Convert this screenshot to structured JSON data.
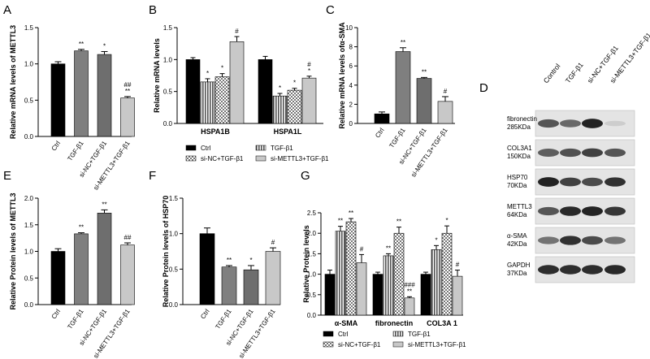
{
  "panels": {
    "A": {
      "letter": "A"
    },
    "B": {
      "letter": "B"
    },
    "C": {
      "letter": "C"
    },
    "D": {
      "letter": "D"
    },
    "E": {
      "letter": "E"
    },
    "F": {
      "letter": "F"
    },
    "G": {
      "letter": "G"
    }
  },
  "colors": {
    "black": "#000000",
    "medium_gray": "#7f7f7f",
    "dark_gray": "#6e6e6e",
    "light_gray": "#c8c8c8",
    "error_bar": "#000000"
  },
  "chart_data": [
    {
      "id": "A",
      "type": "bar",
      "ylabel": "Relative mRNA levels of METTL3",
      "categories": [
        "Ctrl",
        "TGF-β1",
        "si-NC+TGF-β1",
        "si-METTL3+TGF-β1"
      ],
      "values": [
        1.0,
        1.18,
        1.13,
        0.53
      ],
      "errors": [
        0.03,
        0.02,
        0.04,
        0.02
      ],
      "fills": [
        "black",
        "medium_gray",
        "dark_gray",
        "light_gray"
      ],
      "annotations": [
        "",
        "**",
        "*",
        "##\n**"
      ],
      "yticks": [
        "0.0",
        "0.5",
        "1.0",
        "1.5"
      ],
      "ylim": [
        0,
        1.5
      ]
    },
    {
      "id": "B",
      "type": "bar",
      "ylabel": "Relative mRNA levels",
      "groups": [
        "HSPA1B",
        "HSPA1L"
      ],
      "series": [
        {
          "name": "Ctrl",
          "pattern": "solid-black",
          "values": [
            1.0,
            1.0
          ],
          "errors": [
            0.03,
            0.05
          ],
          "annotations": [
            "",
            ""
          ]
        },
        {
          "name": "TGF-β1",
          "pattern": "vstripe",
          "values": [
            0.65,
            0.43
          ],
          "errors": [
            0.05,
            0.04
          ],
          "annotations": [
            "*",
            "*"
          ]
        },
        {
          "name": "si-NC+TGF-β1",
          "pattern": "check",
          "values": [
            0.73,
            0.52
          ],
          "errors": [
            0.05,
            0.03
          ],
          "annotations": [
            "*",
            "*"
          ]
        },
        {
          "name": "si-METTL3+TGF-β1",
          "pattern": "solid-light",
          "values": [
            1.28,
            0.71
          ],
          "errors": [
            0.08,
            0.03
          ],
          "annotations": [
            "#",
            "#\n*"
          ]
        }
      ],
      "yticks": [
        "0.0",
        "0.5",
        "1.0",
        "1.5"
      ],
      "ylim": [
        0,
        1.5
      ],
      "legend": [
        "Ctrl",
        "TGF-β1",
        "si-NC+TGF-β1",
        "si-METTL3+TGF-β1"
      ]
    },
    {
      "id": "C",
      "type": "bar",
      "ylabel": "Relative mRNA levels ofα-SMA",
      "categories": [
        "Ctrl",
        "TGF-β1",
        "si-NC+TGF-β1",
        "si-METTL3+TGF-β1"
      ],
      "values": [
        1.0,
        7.5,
        4.7,
        2.3
      ],
      "errors": [
        0.2,
        0.4,
        0.1,
        0.5
      ],
      "fills": [
        "black",
        "medium_gray",
        "dark_gray",
        "light_gray"
      ],
      "annotations": [
        "",
        "**",
        "**",
        "#"
      ],
      "yticks": [
        "0",
        "2",
        "4",
        "6",
        "8",
        "10"
      ],
      "ylim": [
        0,
        10
      ]
    },
    {
      "id": "E",
      "type": "bar",
      "ylabel": "Relative Protein levels of METTL3",
      "categories": [
        "Ctrl",
        "TGF-β1",
        "si-NC+TGF-β1",
        "si-METTL3+TGF-β1"
      ],
      "values": [
        1.0,
        1.33,
        1.72,
        1.12
      ],
      "errors": [
        0.05,
        0.02,
        0.06,
        0.04
      ],
      "fills": [
        "black",
        "medium_gray",
        "dark_gray",
        "light_gray"
      ],
      "annotations": [
        "",
        "**",
        "**",
        "##"
      ],
      "yticks": [
        "0.0",
        "0.5",
        "1.0",
        "1.5",
        "2.0"
      ],
      "ylim": [
        0,
        2.0
      ]
    },
    {
      "id": "F",
      "type": "bar",
      "ylabel": "Relative Protein levels of HSP70",
      "categories": [
        "Ctrl",
        "TGF-β1",
        "si-NC+TGF-β1",
        "si-METTL3+TGF-β1"
      ],
      "values": [
        1.0,
        0.53,
        0.49,
        0.75
      ],
      "errors": [
        0.08,
        0.02,
        0.06,
        0.05
      ],
      "fills": [
        "black",
        "medium_gray",
        "dark_gray",
        "light_gray"
      ],
      "annotations": [
        "",
        "**",
        "*",
        "#"
      ],
      "yticks": [
        "0.0",
        "0.5",
        "1.0",
        "1.5"
      ],
      "ylim": [
        0,
        1.5
      ]
    },
    {
      "id": "G",
      "type": "bar",
      "ylabel": "Relative Protein levels",
      "groups": [
        "α-SMA",
        "fibronectin",
        "COL3A 1"
      ],
      "series": [
        {
          "name": "Ctrl",
          "pattern": "solid-black",
          "values": [
            1.0,
            1.0,
            1.0
          ],
          "errors": [
            0.1,
            0.05,
            0.05
          ],
          "annotations": [
            "",
            "",
            ""
          ]
        },
        {
          "name": "TGF-β1",
          "pattern": "vstripe",
          "values": [
            2.05,
            1.45,
            1.6
          ],
          "errors": [
            0.12,
            0.05,
            0.1
          ],
          "annotations": [
            "**",
            "**",
            "*"
          ]
        },
        {
          "name": "si-NC+TGF-β1",
          "pattern": "check",
          "values": [
            2.28,
            2.0,
            2.0
          ],
          "errors": [
            0.08,
            0.15,
            0.18
          ],
          "annotations": [
            "**",
            "**",
            "*"
          ]
        },
        {
          "name": "si-METTL3+TGF-β1",
          "pattern": "solid-light",
          "values": [
            1.28,
            0.42,
            0.95
          ],
          "errors": [
            0.2,
            0.03,
            0.15
          ],
          "annotations": [
            "#",
            "###\n**",
            "#"
          ]
        }
      ],
      "yticks": [
        "0.0",
        "0.5",
        "1.0",
        "1.5",
        "2.0",
        "2.5"
      ],
      "ylim": [
        0,
        2.5
      ],
      "legend": [
        "Ctrl",
        "TGF-β1",
        "si-NC+TGF-β1",
        "si-METTL3+TGF-β1"
      ]
    }
  ],
  "blot": {
    "lanes": [
      "Control",
      "TGF-β1",
      "si-NC+TGF-β1",
      "si-METTL3+TGF-β1"
    ],
    "rows": [
      {
        "label": [
          "fibronectin",
          "285KDa"
        ],
        "intensity": [
          0.7,
          0.6,
          0.95,
          0.1
        ]
      },
      {
        "label": [
          "COL3A1",
          "150KDa"
        ],
        "intensity": [
          0.65,
          0.72,
          0.8,
          0.7
        ]
      },
      {
        "label": [
          "HSP70",
          "70KDa"
        ],
        "intensity": [
          0.95,
          0.8,
          0.75,
          0.88
        ]
      },
      {
        "label": [
          "METTL3",
          "64KDa"
        ],
        "intensity": [
          0.7,
          0.92,
          0.95,
          0.85
        ]
      },
      {
        "label": [
          "α-SMA",
          "42KDa"
        ],
        "intensity": [
          0.55,
          0.88,
          0.75,
          0.55
        ]
      },
      {
        "label": [
          "GAPDH",
          "37KDa"
        ],
        "intensity": [
          0.9,
          0.9,
          0.9,
          0.92
        ]
      }
    ]
  }
}
